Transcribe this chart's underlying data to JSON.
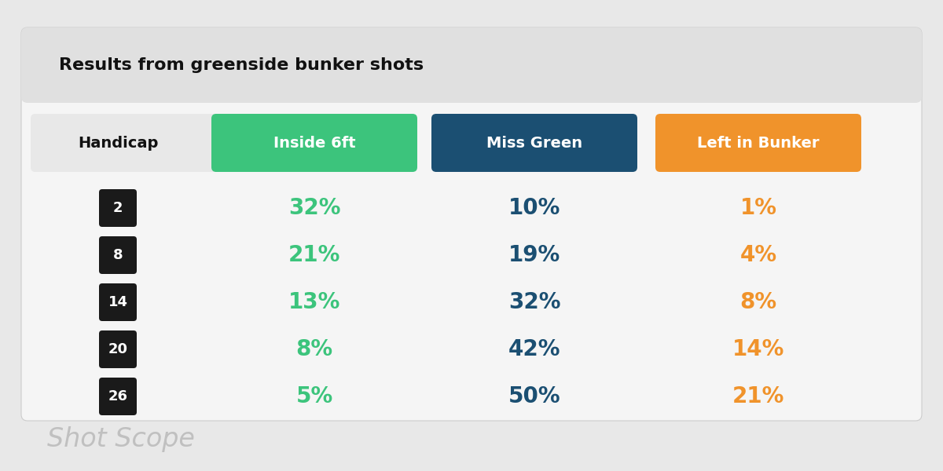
{
  "title": "Results from greenside bunker shots",
  "col_headers": [
    "Handicap",
    "Inside 6ft",
    "Miss Green",
    "Left in Bunker"
  ],
  "col_header_colors": [
    "#f5f5f5",
    "#3CC47C",
    "#1B4F72",
    "#F0932B"
  ],
  "col_header_text_colors": [
    "#111111",
    "#ffffff",
    "#ffffff",
    "#ffffff"
  ],
  "handicaps": [
    "2",
    "8",
    "14",
    "20",
    "26"
  ],
  "inside_6ft": [
    "32%",
    "21%",
    "13%",
    "8%",
    "5%"
  ],
  "miss_green": [
    "10%",
    "19%",
    "32%",
    "42%",
    "50%"
  ],
  "left_in_bunker": [
    "1%",
    "4%",
    "8%",
    "14%",
    "21%"
  ],
  "inside_6ft_color": "#3CC47C",
  "miss_green_color": "#1B4F72",
  "left_in_bunker_color": "#F0932B",
  "handicap_badge_color": "#1a1a1a",
  "handicap_badge_text_color": "#ffffff",
  "background_color": "#e8e8e8",
  "card_color": "#f5f5f5",
  "title_bg_color": "#e0e0e0",
  "watermark": "Shot Scope",
  "watermark_color": "#c0c0c0"
}
